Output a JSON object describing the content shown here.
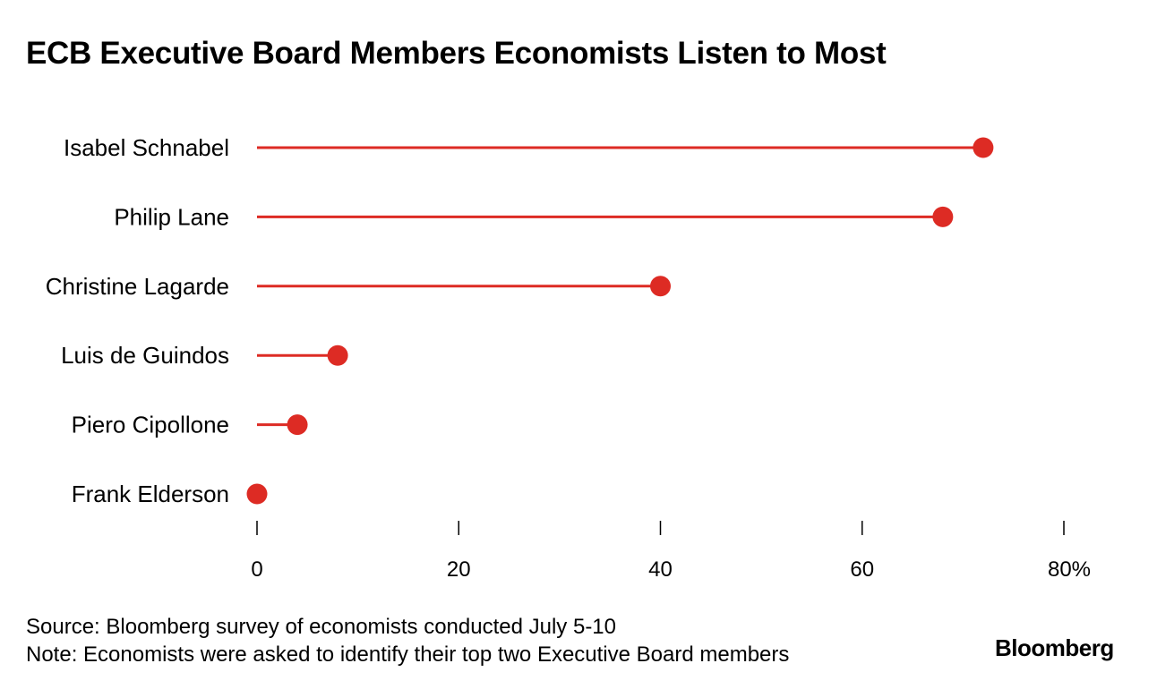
{
  "chart_data": {
    "type": "lollipop",
    "title": "ECB Executive Board Members Economists Listen to Most",
    "categories": [
      "Isabel Schnabel",
      "Philip Lane",
      "Christine Lagarde",
      "Luis de Guindos",
      "Piero Cipollone",
      "Frank Elderson"
    ],
    "values": [
      72,
      68,
      40,
      8,
      4,
      0
    ],
    "unit": "%",
    "xlim": [
      0,
      80
    ],
    "xticks": [
      0,
      20,
      40,
      60,
      80
    ],
    "xtick_labels": [
      "0",
      "20",
      "40",
      "60",
      "80%"
    ],
    "color": "#dd2b24",
    "xlabel": "",
    "ylabel": ""
  },
  "footer": {
    "source": "Source: Bloomberg survey of economists conducted July 5-10",
    "note": "Note: Economists were asked to identify their top two Executive Board members",
    "brand": "Bloomberg"
  }
}
